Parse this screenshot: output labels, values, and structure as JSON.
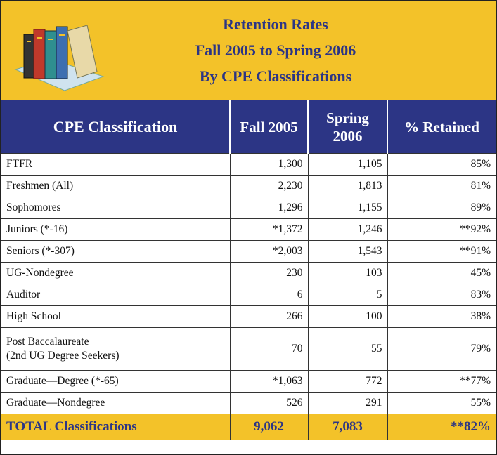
{
  "header": {
    "title": [
      "Retention Rates",
      "Fall 2005 to Spring 2006",
      "By CPE Classifications"
    ]
  },
  "table": {
    "columns": [
      "CPE Classification",
      "Fall 2005",
      "Spring 2006",
      "% Retained"
    ],
    "rows": [
      [
        "FTFR",
        "1,300",
        "1,105",
        "85%"
      ],
      [
        "Freshmen (All)",
        "2,230",
        "1,813",
        "81%"
      ],
      [
        "Sophomores",
        "1,296",
        "1,155",
        "89%"
      ],
      [
        "Juniors (*-16)",
        "*1,372",
        "1,246",
        "**92%"
      ],
      [
        "Seniors (*-307)",
        "*2,003",
        "1,543",
        "**91%"
      ],
      [
        "UG-Nondegree",
        "230",
        "103",
        "45%"
      ],
      [
        "Auditor",
        "6",
        "5",
        "83%"
      ],
      [
        "High School",
        "266",
        "100",
        "38%"
      ],
      [
        [
          "Post Baccalaureate",
          "(2nd UG Degree Seekers)"
        ],
        "70",
        "55",
        "79%"
      ],
      [
        "Graduate—Degree (*-65)",
        "*1,063",
        "772",
        "**77%"
      ],
      [
        "Graduate—Nondegree",
        "526",
        "291",
        "55%"
      ]
    ],
    "total": [
      "TOTAL Classifications",
      "9,062",
      "7,083",
      "**82%"
    ]
  }
}
